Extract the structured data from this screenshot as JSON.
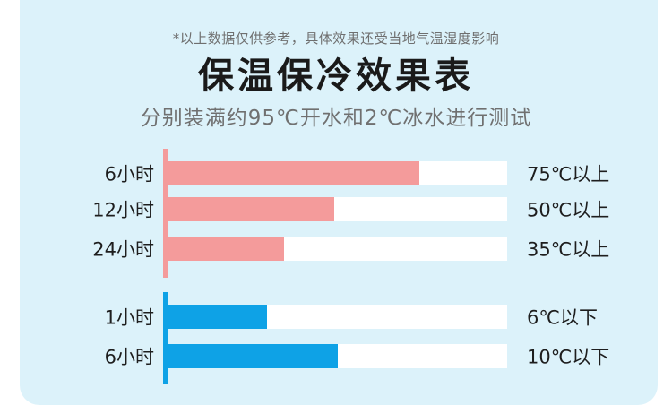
{
  "header": {
    "note": "*以上数据仅供参考，具体效果还受当地气温湿度影响",
    "title": "保温保冷效果表",
    "subtitle": "分别装满约95℃开水和2℃冰水进行测试"
  },
  "colors": {
    "background_card": "#dcf2fa",
    "hot": "#f49b9b",
    "cold": "#0ea2e6",
    "track": "#ffffff"
  },
  "chart_data": [
    {
      "type": "bar",
      "orientation": "horizontal",
      "group": "hot",
      "categories": [
        "6小时",
        "12小时",
        "24小时"
      ],
      "values": [
        0.74,
        0.49,
        0.34
      ],
      "value_labels": [
        "75℃以上",
        "50℃以上",
        "35℃以上"
      ],
      "xlim": [
        0,
        1
      ]
    },
    {
      "type": "bar",
      "orientation": "horizontal",
      "group": "cold",
      "categories": [
        "1小时",
        "6小时"
      ],
      "values": [
        0.29,
        0.5
      ],
      "value_labels": [
        "6℃以下",
        "10℃以下"
      ],
      "xlim": [
        0,
        1
      ]
    }
  ]
}
